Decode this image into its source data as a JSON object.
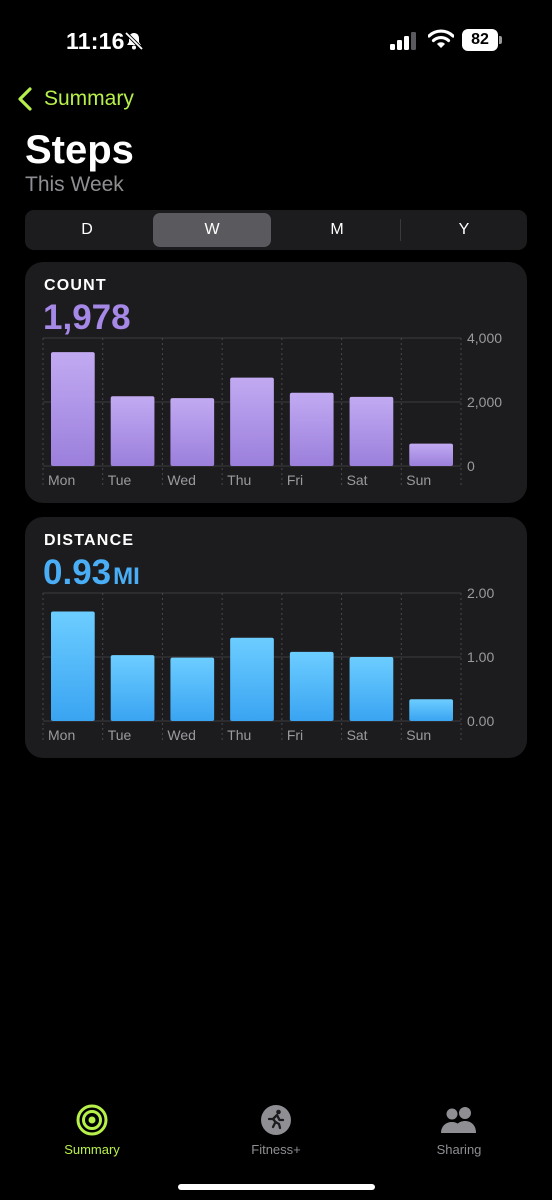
{
  "status_bar": {
    "time": "11:16",
    "battery": "82"
  },
  "nav": {
    "back_label": "Summary"
  },
  "header": {
    "title": "Steps",
    "subtitle": "This Week"
  },
  "segments": [
    {
      "label": "D",
      "active": false
    },
    {
      "label": "W",
      "active": true
    },
    {
      "label": "M",
      "active": false
    },
    {
      "label": "Y",
      "active": false
    }
  ],
  "count_card": {
    "label": "COUNT",
    "value": "1,978",
    "color": "#a688e6"
  },
  "distance_card": {
    "label": "DISTANCE",
    "value": "0.93",
    "unit": "MI",
    "color": "#4aaef6"
  },
  "chart_data": [
    {
      "type": "bar",
      "title": "COUNT",
      "categories": [
        "Mon",
        "Tue",
        "Wed",
        "Thu",
        "Fri",
        "Sat",
        "Sun"
      ],
      "values": [
        3560,
        2180,
        2120,
        2760,
        2290,
        2160,
        700
      ],
      "ylim": [
        0,
        4000
      ],
      "yticks": [
        0,
        2000,
        4000
      ],
      "ytick_labels": [
        "0",
        "2,000",
        "4,000"
      ],
      "grid": true,
      "colors": {
        "bar_top": "#c2aaf2",
        "bar_bottom": "#9b7fdc"
      }
    },
    {
      "type": "bar",
      "title": "DISTANCE",
      "categories": [
        "Mon",
        "Tue",
        "Wed",
        "Thu",
        "Fri",
        "Sat",
        "Sun"
      ],
      "values": [
        1.71,
        1.03,
        0.99,
        1.3,
        1.08,
        1.0,
        0.34
      ],
      "ylim": [
        0,
        2
      ],
      "yticks": [
        0,
        1,
        2
      ],
      "ytick_labels": [
        "0.00",
        "1.00",
        "2.00"
      ],
      "grid": true,
      "colors": {
        "bar_top": "#6ccdff",
        "bar_bottom": "#3aa4f2"
      }
    }
  ],
  "tab_bar": {
    "items": [
      {
        "label": "Summary",
        "icon": "activity-rings-icon",
        "active": true
      },
      {
        "label": "Fitness+",
        "icon": "runner-icon",
        "active": false
      },
      {
        "label": "Sharing",
        "icon": "people-icon",
        "active": false
      }
    ]
  }
}
